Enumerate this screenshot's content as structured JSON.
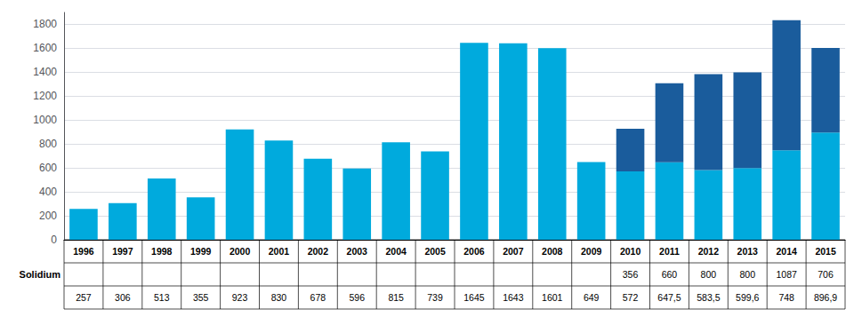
{
  "chart_data": {
    "type": "bar",
    "stacked": true,
    "categories": [
      "1996",
      "1997",
      "1998",
      "1999",
      "2000",
      "2001",
      "2002",
      "2003",
      "2004",
      "2005",
      "2006",
      "2007",
      "2008",
      "2009",
      "2010",
      "2011",
      "2012",
      "2013",
      "2014",
      "2015"
    ],
    "series": [
      {
        "color": "#00AADD",
        "values": [
          257,
          306,
          513,
          355,
          923,
          830,
          678,
          596,
          815,
          739,
          1645,
          1643,
          1601,
          649,
          572,
          647.5,
          583.5,
          599.6,
          748,
          896.9
        ],
        "value_labels": [
          "257",
          "306",
          "513",
          "355",
          "923",
          "830",
          "678",
          "596",
          "815",
          "739",
          "1645",
          "1643",
          "1601",
          "649",
          "572",
          "647,5",
          "583,5",
          "599,6",
          "748",
          "896,9"
        ]
      },
      {
        "name": "Solidium",
        "color": "#1A5C9C",
        "values": [
          0,
          0,
          0,
          0,
          0,
          0,
          0,
          0,
          0,
          0,
          0,
          0,
          0,
          0,
          356,
          660,
          800,
          800,
          1087,
          706
        ],
        "value_labels": [
          null,
          null,
          null,
          null,
          null,
          null,
          null,
          null,
          null,
          null,
          null,
          null,
          null,
          null,
          "356",
          "660",
          "800",
          "800",
          "1087",
          "706"
        ]
      }
    ],
    "ylim": [
      0,
      1900
    ],
    "yticks": [
      0,
      200,
      400,
      600,
      800,
      1000,
      1200,
      1400,
      1600,
      1800
    ],
    "grid": true
  }
}
